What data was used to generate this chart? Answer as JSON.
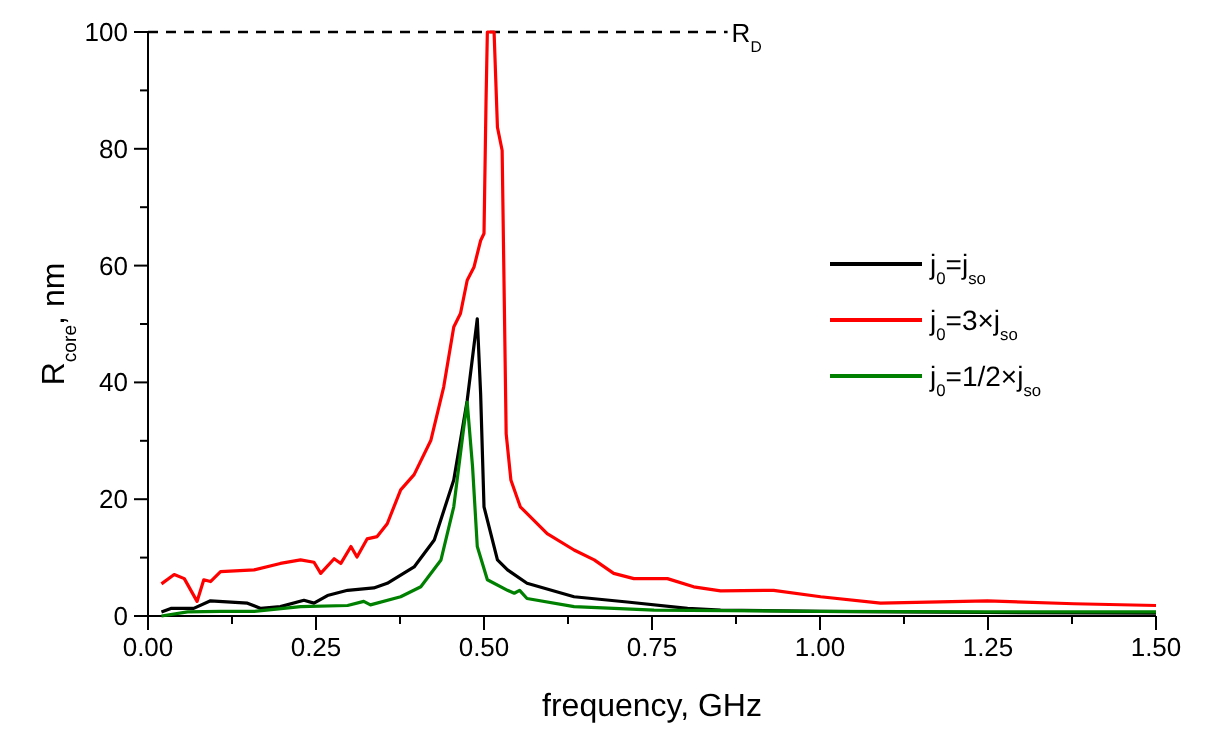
{
  "chart_data": {
    "type": "line",
    "xlabel": "frequency, GHz",
    "ylabel": "R$_{core}$, nm",
    "xlim": [
      0,
      1.5
    ],
    "ylim": [
      0,
      100
    ],
    "xticks": [
      {
        "value": 0,
        "label": "0.00"
      },
      {
        "value": 0.125,
        "label": null
      },
      {
        "value": 0.25,
        "label": "0.25"
      },
      {
        "value": 0.375,
        "label": null
      },
      {
        "value": 0.5,
        "label": "0.50"
      },
      {
        "value": 0.625,
        "label": null
      },
      {
        "value": 0.75,
        "label": "0.75"
      },
      {
        "value": 0.875,
        "label": null
      },
      {
        "value": 1,
        "label": "1.00"
      },
      {
        "value": 1.125,
        "label": null
      },
      {
        "value": 1.25,
        "label": "1.25"
      },
      {
        "value": 1.375,
        "label": null
      },
      {
        "value": 1.5,
        "label": "1.50"
      }
    ],
    "yticks": [
      0,
      {
        "value": 10,
        "label": null
      },
      20,
      {
        "value": 30,
        "label": null
      },
      40,
      {
        "value": 50,
        "label": null
      },
      60,
      {
        "value": 70,
        "label": null
      },
      80,
      {
        "value": 90,
        "label": null
      },
      100
    ],
    "grid": false,
    "legend": "right",
    "line_style": "solid",
    "marker": "none",
    "ref_lines": [
      {
        "axis": "y",
        "value": 100,
        "label": "R$_{D}$",
        "line_style": "dashed",
        "color": "#000000"
      }
    ],
    "series": [
      {
        "name": "j$_{0}$=j$_{so}$",
        "color": "#000000",
        "x": [
          0.02,
          0.034,
          0.068,
          0.093,
          0.148,
          0.168,
          0.197,
          0.232,
          0.247,
          0.267,
          0.297,
          0.336,
          0.356,
          0.396,
          0.426,
          0.455,
          0.475,
          0.49,
          0.495,
          0.5,
          0.52,
          0.535,
          0.564,
          0.634,
          0.713,
          0.803,
          0.852,
          1.0,
          1.25,
          1.5
        ],
        "values": [
          0.7,
          1.3,
          1.3,
          2.6,
          2.2,
          1.3,
          1.6,
          2.7,
          2.2,
          3.5,
          4.4,
          4.8,
          5.6,
          8.4,
          13.0,
          23.3,
          36.9,
          50.9,
          38,
          18.7,
          9.6,
          7.9,
          5.6,
          3.3,
          2.4,
          1.3,
          1.0,
          0.8,
          0.6,
          0.5
        ]
      },
      {
        "name": "j$_{0}$=3×j$_{so}$",
        "color": "#ff0000",
        "x": [
          0.02,
          0.039,
          0.054,
          0.073,
          0.083,
          0.093,
          0.108,
          0.158,
          0.197,
          0.227,
          0.247,
          0.257,
          0.277,
          0.287,
          0.302,
          0.311,
          0.326,
          0.341,
          0.356,
          0.376,
          0.396,
          0.421,
          0.44,
          0.455,
          0.465,
          0.475,
          0.485,
          0.495,
          0.5,
          0.503,
          0.505,
          0.515,
          0.52,
          0.527,
          0.533,
          0.54,
          0.554,
          0.594,
          0.634,
          0.664,
          0.693,
          0.723,
          0.773,
          0.812,
          0.852,
          0.931,
          1.001,
          1.09,
          1.249,
          1.378,
          1.5
        ],
        "values": [
          5.5,
          7.1,
          6.4,
          2.5,
          6.2,
          5.9,
          7.6,
          7.9,
          9.0,
          9.6,
          9.2,
          7.3,
          9.8,
          9.0,
          11.9,
          10.1,
          13.2,
          13.6,
          15.8,
          21.6,
          24.2,
          30.1,
          39.2,
          49.5,
          51.8,
          57.5,
          59.7,
          64.3,
          65.5,
          88,
          100,
          100,
          83.7,
          79.7,
          31.2,
          23.3,
          18.7,
          14.1,
          11.3,
          9.6,
          7.3,
          6.4,
          6.4,
          5.0,
          4.3,
          4.4,
          3.3,
          2.2,
          2.6,
          2.1,
          1.8
        ]
      },
      {
        "name": "j$_{0}$=1/2×j$_{so}$",
        "color": "#008000",
        "x": [
          0.02,
          0.059,
          0.108,
          0.158,
          0.227,
          0.297,
          0.321,
          0.331,
          0.376,
          0.406,
          0.436,
          0.455,
          0.47,
          0.475,
          0.483,
          0.49,
          0.505,
          0.535,
          0.545,
          0.553,
          0.564,
          0.634,
          0.753,
          1.0,
          1.25,
          1.5
        ],
        "values": [
          0,
          0.7,
          0.8,
          0.8,
          1.6,
          1.8,
          2.5,
          1.9,
          3.3,
          5.0,
          9.6,
          18.7,
          32.4,
          36.6,
          25.5,
          11.9,
          6.2,
          4.4,
          3.9,
          4.4,
          3.0,
          1.6,
          1.0,
          0.8,
          0.7,
          0.7
        ]
      }
    ]
  }
}
